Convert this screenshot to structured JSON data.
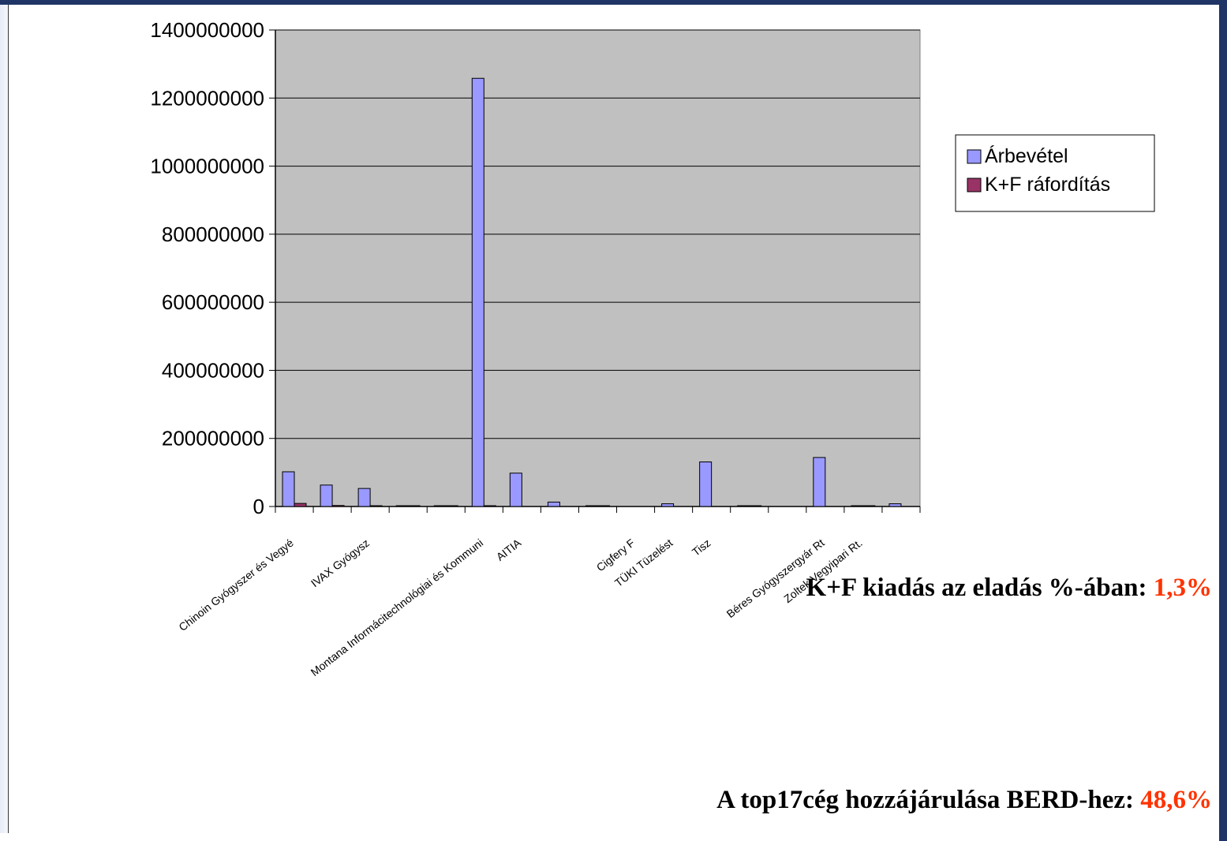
{
  "chart_data": {
    "type": "bar",
    "categories": [
      "Chinoin Gyógyszer és Vegyé",
      "",
      "IVAX Gyógysz",
      "",
      "",
      "Montana Informácitechnológiai és Kommuni",
      "AITIA",
      "",
      "",
      "Cigfery F",
      "TÜKI Tüzelést",
      "Tisz",
      "",
      "",
      "Béres Gyógyszergyár Rt",
      "Zoltek Vegyipari Rt.",
      ""
    ],
    "series": [
      {
        "name": "Árbevétel",
        "color": "#9999ff",
        "values": [
          102000000,
          63000000,
          53000000,
          2000000,
          2000000,
          1258000000,
          98000000,
          13000000,
          2000000,
          0,
          8000000,
          131000000,
          2000000,
          0,
          144000000,
          2000000,
          8000000
        ]
      },
      {
        "name": "K+F ráfordítás",
        "color": "#993366",
        "values": [
          9000000,
          3000000,
          1000000,
          1500000,
          1500000,
          1000000,
          0,
          0,
          1000000,
          0,
          0,
          0,
          1500000,
          0,
          0,
          1000000,
          0
        ]
      }
    ],
    "ylim": [
      0,
      1400000000
    ],
    "yticks": [
      "0",
      "200000000",
      "400000000",
      "600000000",
      "800000000",
      "1000000000",
      "1200000000",
      "1400000000"
    ],
    "plot_background": "#c0c0c0",
    "grid": true,
    "legend_position": "right",
    "title": "",
    "xlabel": "",
    "ylabel": ""
  },
  "notes": {
    "line1_text": "K+F kiadás az eladás %-ában: ",
    "line1_value": "1,3%",
    "line2_text": "A top17cég hozzájárulása BERD-hez: ",
    "line2_value": "48,6%"
  },
  "colors": {
    "frame": "#1f3566",
    "highlight": "#ff3300"
  }
}
